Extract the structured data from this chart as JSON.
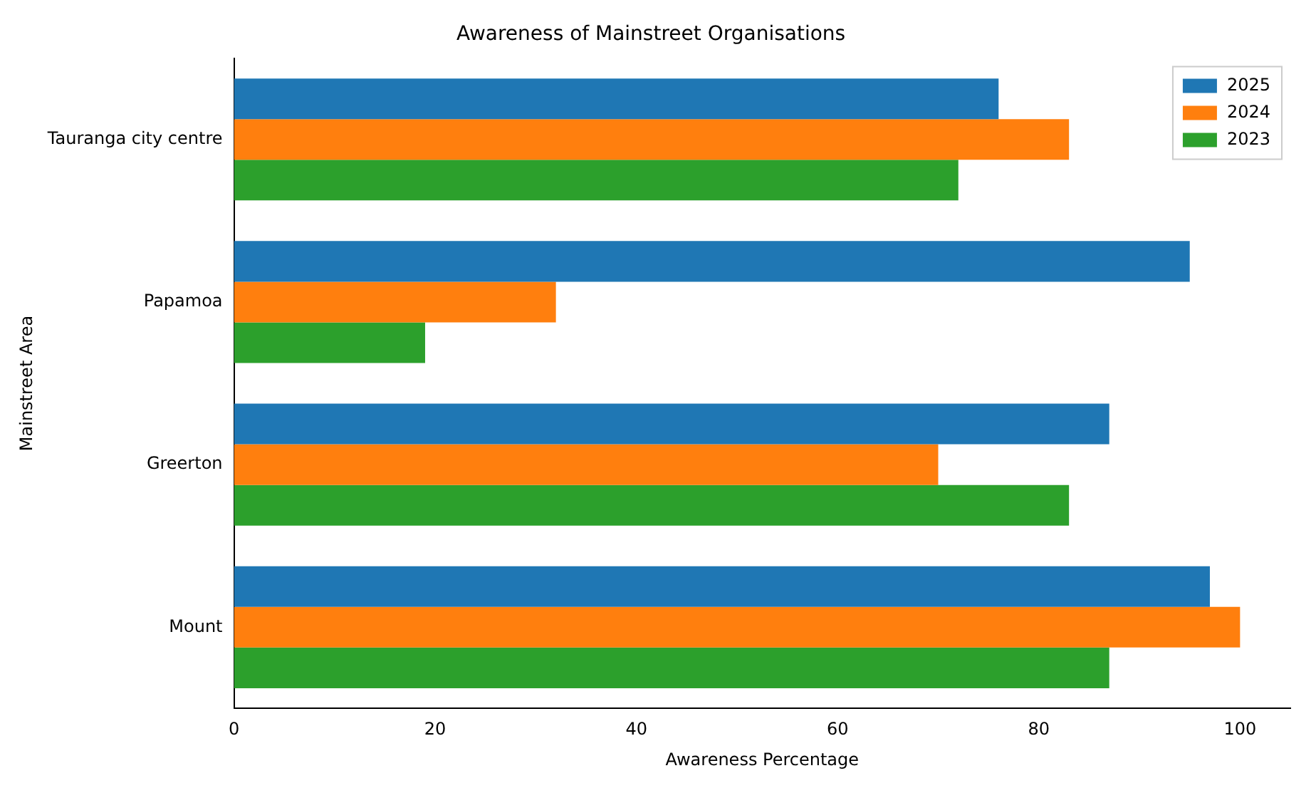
{
  "chart_data": {
    "type": "bar",
    "orientation": "horizontal",
    "title": "Awareness of Mainstreet Organisations",
    "xlabel": "Awareness Percentage",
    "ylabel": "Mainstreet Area",
    "categories": [
      "Tauranga city centre",
      "Papamoa",
      "Greerton",
      "Mount"
    ],
    "series": [
      {
        "name": "2025",
        "color": "#1f77b4",
        "values": [
          76,
          95,
          87,
          97
        ]
      },
      {
        "name": "2024",
        "color": "#ff7f0e",
        "values": [
          83,
          32,
          70,
          100
        ]
      },
      {
        "name": "2023",
        "color": "#2ca02c",
        "values": [
          72,
          19,
          83,
          87
        ]
      }
    ],
    "xlim": [
      0,
      105
    ],
    "xticks": [
      0,
      20,
      40,
      60,
      80,
      100
    ],
    "grid": false,
    "legend": "top right"
  }
}
